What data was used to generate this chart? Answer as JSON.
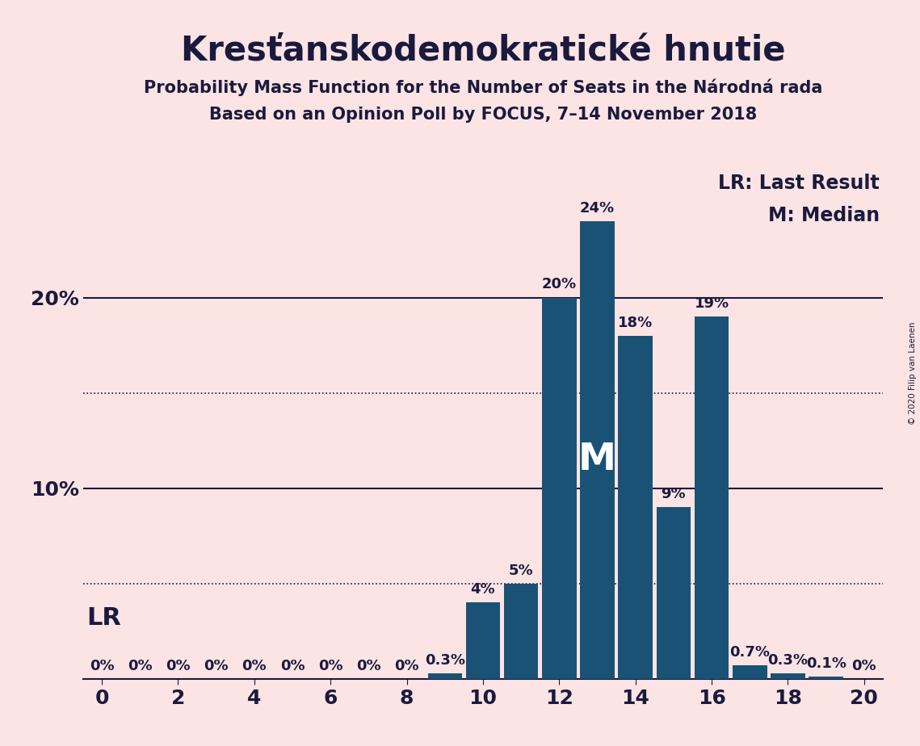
{
  "title": "Kresťanskodemokratické hnutie",
  "subtitle1": "Probability Mass Function for the Number of Seats in the Národná rada",
  "subtitle2": "Based on an Opinion Poll by FOCUS, 7–14 November 2018",
  "copyright": "© 2020 Filip van Laenen",
  "seats": [
    0,
    1,
    2,
    3,
    4,
    5,
    6,
    7,
    8,
    9,
    10,
    11,
    12,
    13,
    14,
    15,
    16,
    17,
    18,
    19,
    20
  ],
  "probabilities": [
    0.0,
    0.0,
    0.0,
    0.0,
    0.0,
    0.0,
    0.0,
    0.0,
    0.0,
    0.3,
    4.0,
    5.0,
    20.0,
    24.0,
    18.0,
    9.0,
    19.0,
    0.7,
    0.3,
    0.1,
    0.0
  ],
  "bar_color": "#1a5276",
  "background_color": "#fce4e4",
  "text_color": "#1a1a3e",
  "median_seat": 13,
  "lr_seat": 9,
  "dotted_lines": [
    5.0,
    15.0
  ],
  "solid_lines": [
    10.0,
    20.0
  ],
  "title_fontsize": 30,
  "subtitle_fontsize": 15,
  "axis_fontsize": 18,
  "bar_label_fontsize": 13,
  "legend_fontsize": 17,
  "median_label_fontsize": 34,
  "lr_label_fontsize": 22,
  "xlim": [
    -0.5,
    20.5
  ],
  "ylim": [
    0,
    27
  ],
  "xticks": [
    0,
    2,
    4,
    6,
    8,
    10,
    12,
    14,
    16,
    18,
    20
  ]
}
